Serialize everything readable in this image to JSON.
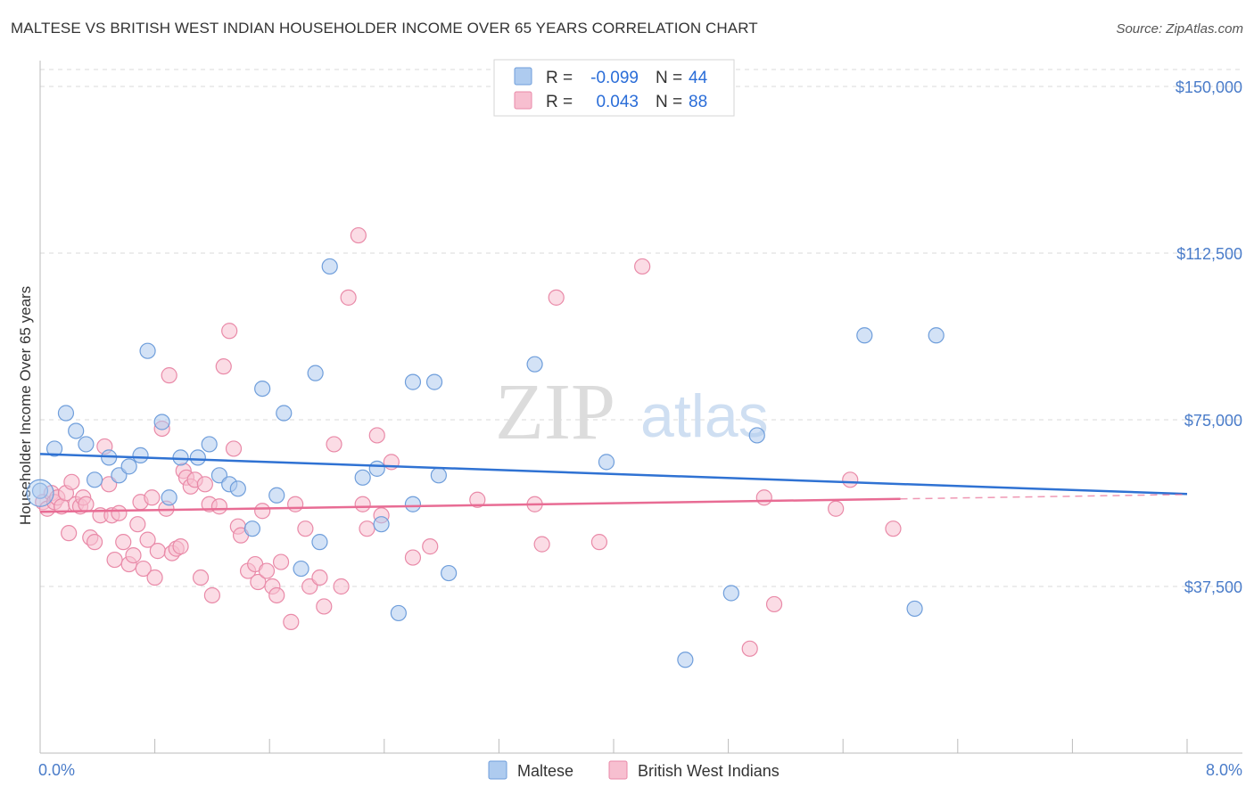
{
  "title": "MALTESE VS BRITISH WEST INDIAN HOUSEHOLDER INCOME OVER 65 YEARS CORRELATION CHART",
  "source": "Source: ZipAtlas.com",
  "watermark": {
    "zip": "ZIP",
    "atlas": "atlas"
  },
  "legend": {
    "r_label": "R =",
    "n_label": "N =",
    "rows": [
      {
        "r": "-0.099",
        "n": "44"
      },
      {
        "r": "0.043",
        "n": "88"
      }
    ]
  },
  "colors": {
    "blue_fill": "#aecbef",
    "blue_stroke": "#6f9edb",
    "blue_line": "#2f72d3",
    "pink_fill": "#f7bfd0",
    "pink_stroke": "#e98aa8",
    "pink_line": "#e86c94",
    "grid": "#d9d9d9",
    "axis_text": "#4a7cc9"
  },
  "chart_data": {
    "type": "scatter",
    "title": "MALTESE VS BRITISH WEST INDIAN HOUSEHOLDER INCOME OVER 65 YEARS CORRELATION CHART",
    "xlabel": "",
    "ylabel": "Householder Income Over 65 years",
    "xlim": [
      0,
      8
    ],
    "ylim": [
      0,
      157500
    ],
    "x_tick_labels": [
      "0.0%",
      "8.0%"
    ],
    "y_ticks": [
      37500,
      75000,
      112500,
      150000
    ],
    "y_tick_labels": [
      "$37,500",
      "$75,000",
      "$112,500",
      "$150,000"
    ],
    "grid": true,
    "legend_position": "top-center",
    "series": [
      {
        "name": "Maltese",
        "r": -0.099,
        "n": 44,
        "trend": {
          "x": [
            0,
            8
          ],
          "y": [
            67300,
            58300
          ]
        },
        "points": [
          [
            0.0,
            59000
          ],
          [
            0.1,
            68500
          ],
          [
            0.18,
            76500
          ],
          [
            0.25,
            72500
          ],
          [
            0.32,
            69500
          ],
          [
            0.38,
            61500
          ],
          [
            0.48,
            66500
          ],
          [
            0.55,
            62500
          ],
          [
            0.62,
            64500
          ],
          [
            0.7,
            67000
          ],
          [
            0.75,
            90500
          ],
          [
            0.85,
            74500
          ],
          [
            0.9,
            57500
          ],
          [
            0.98,
            66500
          ],
          [
            1.1,
            66500
          ],
          [
            1.18,
            69500
          ],
          [
            1.25,
            62500
          ],
          [
            1.32,
            60500
          ],
          [
            1.38,
            59500
          ],
          [
            1.48,
            50500
          ],
          [
            1.55,
            82000
          ],
          [
            1.65,
            58000
          ],
          [
            1.7,
            76500
          ],
          [
            1.82,
            41500
          ],
          [
            1.92,
            85500
          ],
          [
            1.95,
            47500
          ],
          [
            2.02,
            109500
          ],
          [
            2.25,
            62000
          ],
          [
            2.35,
            64000
          ],
          [
            2.38,
            51500
          ],
          [
            2.5,
            31500
          ],
          [
            2.6,
            83500
          ],
          [
            2.6,
            56000
          ],
          [
            2.75,
            83500
          ],
          [
            2.78,
            62500
          ],
          [
            2.85,
            40500
          ],
          [
            3.45,
            87500
          ],
          [
            3.95,
            65500
          ],
          [
            4.5,
            21000
          ],
          [
            4.82,
            36000
          ],
          [
            5.0,
            71500
          ],
          [
            5.75,
            94000
          ],
          [
            6.1,
            32500
          ],
          [
            6.25,
            94000
          ]
        ]
      },
      {
        "name": "British West Indians",
        "r": 0.043,
        "n": 88,
        "trend": {
          "x": [
            0,
            6
          ],
          "y": [
            54300,
            57200
          ]
        },
        "trend_dashed": {
          "x": [
            6,
            8
          ],
          "y": [
            57200,
            58200
          ]
        },
        "points": [
          [
            0.02,
            56500
          ],
          [
            0.05,
            55000
          ],
          [
            0.08,
            58500
          ],
          [
            0.1,
            56500
          ],
          [
            0.12,
            57500
          ],
          [
            0.15,
            55500
          ],
          [
            0.18,
            58500
          ],
          [
            0.2,
            49500
          ],
          [
            0.22,
            61000
          ],
          [
            0.25,
            56000
          ],
          [
            0.28,
            55500
          ],
          [
            0.3,
            57500
          ],
          [
            0.32,
            56000
          ],
          [
            0.35,
            48500
          ],
          [
            0.38,
            47500
          ],
          [
            0.42,
            53500
          ],
          [
            0.45,
            69000
          ],
          [
            0.48,
            60500
          ],
          [
            0.5,
            53500
          ],
          [
            0.52,
            43500
          ],
          [
            0.55,
            54000
          ],
          [
            0.58,
            47500
          ],
          [
            0.62,
            42500
          ],
          [
            0.65,
            44500
          ],
          [
            0.68,
            51500
          ],
          [
            0.7,
            56500
          ],
          [
            0.72,
            41500
          ],
          [
            0.75,
            48000
          ],
          [
            0.78,
            57500
          ],
          [
            0.8,
            39500
          ],
          [
            0.82,
            45500
          ],
          [
            0.85,
            73000
          ],
          [
            0.88,
            55000
          ],
          [
            0.9,
            85000
          ],
          [
            0.92,
            45000
          ],
          [
            0.95,
            46000
          ],
          [
            0.98,
            46500
          ],
          [
            1.0,
            63500
          ],
          [
            1.02,
            62000
          ],
          [
            1.05,
            60000
          ],
          [
            1.08,
            61500
          ],
          [
            1.12,
            39500
          ],
          [
            1.15,
            60500
          ],
          [
            1.18,
            56000
          ],
          [
            1.2,
            35500
          ],
          [
            1.25,
            55500
          ],
          [
            1.28,
            87000
          ],
          [
            1.32,
            95000
          ],
          [
            1.35,
            68500
          ],
          [
            1.38,
            51000
          ],
          [
            1.4,
            49000
          ],
          [
            1.45,
            41000
          ],
          [
            1.5,
            42500
          ],
          [
            1.52,
            38500
          ],
          [
            1.55,
            54500
          ],
          [
            1.58,
            41000
          ],
          [
            1.62,
            37500
          ],
          [
            1.65,
            35500
          ],
          [
            1.68,
            43000
          ],
          [
            1.75,
            29500
          ],
          [
            1.78,
            56000
          ],
          [
            1.85,
            50500
          ],
          [
            1.88,
            37500
          ],
          [
            1.95,
            39500
          ],
          [
            1.98,
            33000
          ],
          [
            2.05,
            69500
          ],
          [
            2.1,
            37500
          ],
          [
            2.15,
            102500
          ],
          [
            2.22,
            116500
          ],
          [
            2.25,
            56000
          ],
          [
            2.28,
            50500
          ],
          [
            2.35,
            71500
          ],
          [
            2.38,
            53500
          ],
          [
            2.45,
            65500
          ],
          [
            2.6,
            44000
          ],
          [
            2.72,
            46500
          ],
          [
            3.05,
            57000
          ],
          [
            3.45,
            56000
          ],
          [
            3.5,
            47000
          ],
          [
            3.6,
            102500
          ],
          [
            3.9,
            47500
          ],
          [
            4.2,
            109500
          ],
          [
            4.95,
            23500
          ],
          [
            5.05,
            57500
          ],
          [
            5.12,
            33500
          ],
          [
            5.55,
            55000
          ],
          [
            5.65,
            61500
          ],
          [
            5.95,
            50500
          ]
        ]
      }
    ]
  }
}
